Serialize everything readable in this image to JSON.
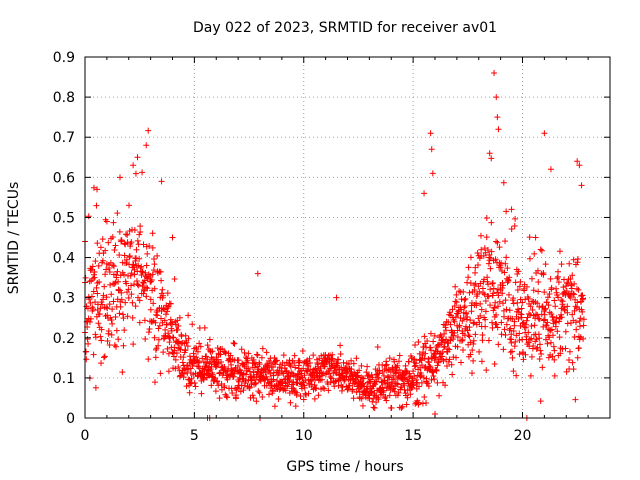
{
  "chart_data": {
    "type": "scatter",
    "title": "Day 022 of 2023, SRMTID for receiver av01",
    "xlabel": "GPS time / hours",
    "ylabel": "SRMTID / TECUs",
    "xlim": [
      0,
      24
    ],
    "ylim": [
      0,
      0.9
    ],
    "xticks": [
      0,
      5,
      10,
      15,
      20
    ],
    "xtick_labels": [
      "0",
      "5",
      "10",
      "15",
      "20"
    ],
    "yticks": [
      0,
      0.1,
      0.2,
      0.3,
      0.4,
      0.5,
      0.6,
      0.7,
      0.8,
      0.9
    ],
    "ytick_labels": [
      "0",
      "0.1",
      "0.2",
      "0.3",
      "0.4",
      "0.5",
      "0.6",
      "0.7",
      "0.8",
      "0.9"
    ],
    "grid": true,
    "marker": "+",
    "color": "#ff0000",
    "series": [
      {
        "name": "SRMTID",
        "profile": [
          {
            "x": 0.0,
            "y": 0.24
          },
          {
            "x": 0.5,
            "y": 0.3
          },
          {
            "x": 1.0,
            "y": 0.3
          },
          {
            "x": 1.5,
            "y": 0.31
          },
          {
            "x": 2.0,
            "y": 0.34
          },
          {
            "x": 2.5,
            "y": 0.38
          },
          {
            "x": 3.0,
            "y": 0.33
          },
          {
            "x": 3.5,
            "y": 0.26
          },
          {
            "x": 4.0,
            "y": 0.2
          },
          {
            "x": 4.5,
            "y": 0.15
          },
          {
            "x": 5.0,
            "y": 0.13
          },
          {
            "x": 6.0,
            "y": 0.12
          },
          {
            "x": 7.0,
            "y": 0.11
          },
          {
            "x": 8.0,
            "y": 0.11
          },
          {
            "x": 9.0,
            "y": 0.1
          },
          {
            "x": 10.0,
            "y": 0.1
          },
          {
            "x": 11.0,
            "y": 0.12
          },
          {
            "x": 12.0,
            "y": 0.1
          },
          {
            "x": 13.0,
            "y": 0.07
          },
          {
            "x": 14.0,
            "y": 0.09
          },
          {
            "x": 15.0,
            "y": 0.11
          },
          {
            "x": 16.0,
            "y": 0.13
          },
          {
            "x": 17.0,
            "y": 0.22
          },
          {
            "x": 18.0,
            "y": 0.28
          },
          {
            "x": 18.7,
            "y": 0.34
          },
          {
            "x": 19.5,
            "y": 0.28
          },
          {
            "x": 20.0,
            "y": 0.25
          },
          {
            "x": 21.0,
            "y": 0.24
          },
          {
            "x": 22.0,
            "y": 0.26
          },
          {
            "x": 22.7,
            "y": 0.27
          }
        ],
        "spread": [
          {
            "x": 0.0,
            "y": 0.14
          },
          {
            "x": 2.0,
            "y": 0.16
          },
          {
            "x": 3.0,
            "y": 0.15
          },
          {
            "x": 4.5,
            "y": 0.06
          },
          {
            "x": 10.0,
            "y": 0.05
          },
          {
            "x": 13.0,
            "y": 0.04
          },
          {
            "x": 16.0,
            "y": 0.07
          },
          {
            "x": 18.5,
            "y": 0.15
          },
          {
            "x": 20.0,
            "y": 0.13
          },
          {
            "x": 22.7,
            "y": 0.14
          }
        ],
        "x_range": [
          0.0,
          22.8
        ],
        "sample_count": 1900,
        "peaks": [
          {
            "x": 0.0,
            "y": 0.44
          },
          {
            "x": 0.55,
            "y": 0.57
          },
          {
            "x": 1.0,
            "y": 0.49
          },
          {
            "x": 1.6,
            "y": 0.6
          },
          {
            "x": 2.2,
            "y": 0.63
          },
          {
            "x": 2.4,
            "y": 0.65
          },
          {
            "x": 2.8,
            "y": 0.68
          },
          {
            "x": 3.5,
            "y": 0.59
          },
          {
            "x": 4.0,
            "y": 0.45
          },
          {
            "x": 7.9,
            "y": 0.36
          },
          {
            "x": 11.5,
            "y": 0.3
          },
          {
            "x": 15.5,
            "y": 0.56
          },
          {
            "x": 15.8,
            "y": 0.71
          },
          {
            "x": 15.85,
            "y": 0.67
          },
          {
            "x": 15.9,
            "y": 0.61
          },
          {
            "x": 18.5,
            "y": 0.66
          },
          {
            "x": 18.7,
            "y": 0.86
          },
          {
            "x": 18.8,
            "y": 0.8
          },
          {
            "x": 18.85,
            "y": 0.75
          },
          {
            "x": 18.9,
            "y": 0.72
          },
          {
            "x": 19.5,
            "y": 0.52
          },
          {
            "x": 20.6,
            "y": 0.45
          },
          {
            "x": 21.0,
            "y": 0.71
          },
          {
            "x": 21.3,
            "y": 0.62
          },
          {
            "x": 22.5,
            "y": 0.64
          },
          {
            "x": 22.6,
            "y": 0.63
          },
          {
            "x": 22.7,
            "y": 0.58
          }
        ],
        "floor_points": [
          {
            "x": 5.6,
            "y": 0.0
          },
          {
            "x": 5.7,
            "y": 0.0
          },
          {
            "x": 8.0,
            "y": 0.0
          },
          {
            "x": 16.0,
            "y": 0.01
          },
          {
            "x": 20.2,
            "y": 0.0
          }
        ]
      }
    ]
  }
}
